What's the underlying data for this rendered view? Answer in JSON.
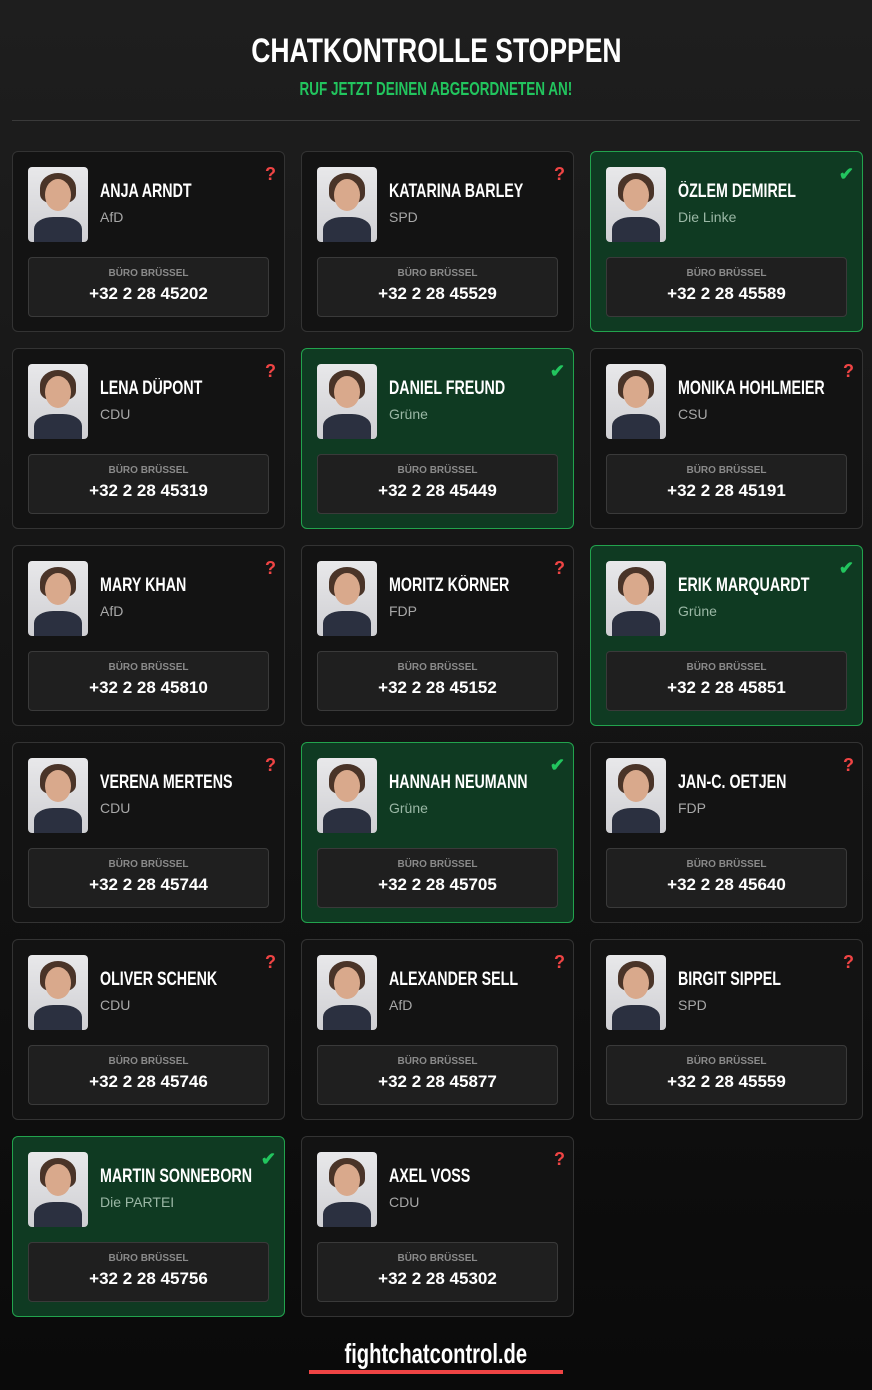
{
  "header": {
    "title": "CHATKONTROLLE STOPPEN",
    "subtitle": "RUF JETZT DEINEN ABGEORDNETEN AN!"
  },
  "colors": {
    "accent_green": "#22c55e",
    "accent_red": "#ef4444",
    "called_bg": "#0f3a22"
  },
  "office_label": "BÜRO BRÜSSEL",
  "meps": [
    {
      "name": "ANJA ARNDT",
      "party": "AfD",
      "phone": "+32 2 28 45202",
      "status": "unknown",
      "icon": "question-mark-icon"
    },
    {
      "name": "KATARINA BARLEY",
      "party": "SPD",
      "phone": "+32 2 28 45529",
      "status": "unknown",
      "icon": "question-mark-icon"
    },
    {
      "name": "ÖZLEM DEMIREL",
      "party": "Die Linke",
      "phone": "+32 2 28 45589",
      "status": "called",
      "icon": "checkmark-icon"
    },
    {
      "name": "LENA DÜPONT",
      "party": "CDU",
      "phone": "+32 2 28 45319",
      "status": "unknown",
      "icon": "question-mark-icon"
    },
    {
      "name": "DANIEL FREUND",
      "party": "Grüne",
      "phone": "+32 2 28 45449",
      "status": "called",
      "icon": "checkmark-icon"
    },
    {
      "name": "MONIKA HOHLMEIER",
      "party": "CSU",
      "phone": "+32 2 28 45191",
      "status": "unknown",
      "icon": "question-mark-icon"
    },
    {
      "name": "MARY KHAN",
      "party": "AfD",
      "phone": "+32 2 28 45810",
      "status": "unknown",
      "icon": "question-mark-icon"
    },
    {
      "name": "MORITZ KÖRNER",
      "party": "FDP",
      "phone": "+32 2 28 45152",
      "status": "unknown",
      "icon": "question-mark-icon"
    },
    {
      "name": "ERIK MARQUARDT",
      "party": "Grüne",
      "phone": "+32 2 28 45851",
      "status": "called",
      "icon": "checkmark-icon"
    },
    {
      "name": "VERENA MERTENS",
      "party": "CDU",
      "phone": "+32 2 28 45744",
      "status": "unknown",
      "icon": "question-mark-icon"
    },
    {
      "name": "HANNAH NEUMANN",
      "party": "Grüne",
      "phone": "+32 2 28 45705",
      "status": "called",
      "icon": "checkmark-icon"
    },
    {
      "name": "JAN-C. OETJEN",
      "party": "FDP",
      "phone": "+32 2 28 45640",
      "status": "unknown",
      "icon": "question-mark-icon"
    },
    {
      "name": "OLIVER SCHENK",
      "party": "CDU",
      "phone": "+32 2 28 45746",
      "status": "unknown",
      "icon": "question-mark-icon"
    },
    {
      "name": "ALEXANDER SELL",
      "party": "AfD",
      "phone": "+32 2 28 45877",
      "status": "unknown",
      "icon": "question-mark-icon"
    },
    {
      "name": "BIRGIT SIPPEL",
      "party": "SPD",
      "phone": "+32 2 28 45559",
      "status": "unknown",
      "icon": "question-mark-icon"
    },
    {
      "name": "MARTIN SONNEBORN",
      "party": "Die PARTEI",
      "phone": "+32 2 28 45756",
      "status": "called",
      "icon": "checkmark-icon"
    },
    {
      "name": "AXEL VOSS",
      "party": "CDU",
      "phone": "+32 2 28 45302",
      "status": "unknown",
      "icon": "question-mark-icon"
    }
  ],
  "status_glyphs": {
    "unknown": "?",
    "called": "✔"
  },
  "footer": {
    "link": "fightchatcontrol.de"
  }
}
